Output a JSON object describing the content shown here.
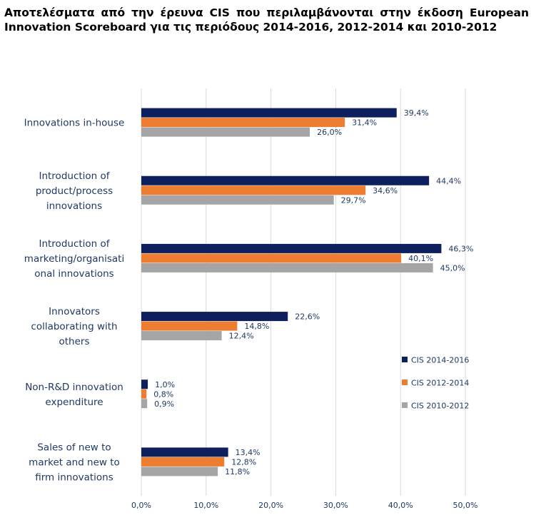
{
  "chart_data": {
    "type": "bar",
    "orientation": "horizontal",
    "title": "Αποτελέσματα από την έρευνα CIS που περιλαμβάνονται στην έκδοση European Innovation Scoreboard για τις περιόδους 2014-2016, 2012-2014 και 2010-2012",
    "categories": [
      [
        "Innovations in-house"
      ],
      [
        "Introduction of",
        "product/process",
        "innovations"
      ],
      [
        "Introduction of",
        "marketing/organisati",
        "onal innovations"
      ],
      [
        "Innovators",
        "collaborating with",
        "others"
      ],
      [
        "Non-R&D innovation",
        "expenditure"
      ],
      [
        "Sales of new to",
        "market and new to",
        "firm innovations"
      ]
    ],
    "series": [
      {
        "name": "CIS 2014-2016",
        "color": "#0d1f5c",
        "values": [
          39.4,
          44.4,
          46.3,
          22.6,
          1.0,
          13.4
        ],
        "labels": [
          "39,4%",
          "44,4%",
          "46,3%",
          "22,6%",
          "1,0%",
          "13,4%"
        ]
      },
      {
        "name": "CIS 2012-2014",
        "color": "#ed7d31",
        "values": [
          31.4,
          34.6,
          40.1,
          14.8,
          0.8,
          12.8
        ],
        "labels": [
          "31,4%",
          "34,6%",
          "40,1%",
          "14,8%",
          "0,8%",
          "12,8%"
        ]
      },
      {
        "name": "CIS 2010-2012",
        "color": "#a5a5a5",
        "values": [
          26.0,
          29.7,
          45.0,
          12.4,
          0.9,
          11.8
        ],
        "labels": [
          "26,0%",
          "29,7%",
          "45,0%",
          "12,4%",
          "0,9%",
          "11,8%"
        ]
      }
    ],
    "xlim": [
      0,
      50
    ],
    "xticks": [
      0,
      10,
      20,
      30,
      40,
      50
    ],
    "xtick_labels": [
      "0,0%",
      "10,0%",
      "20,0%",
      "30,0%",
      "40,0%",
      "50,0%"
    ],
    "grid": true,
    "legend": "right"
  }
}
